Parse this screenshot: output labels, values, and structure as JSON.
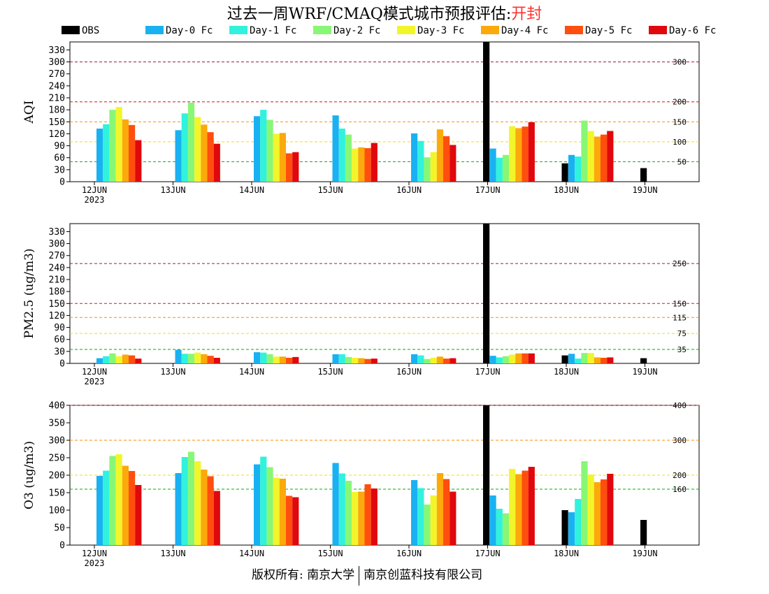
{
  "title": {
    "main": "过去一周WRF/CMAQ模式城市预报评估:",
    "city": "开封"
  },
  "legend": [
    {
      "name": "OBS",
      "color": "#000000"
    },
    {
      "name": "Day-0 Fc",
      "color": "#1ab1f2"
    },
    {
      "name": "Day-1 Fc",
      "color": "#30f2dd"
    },
    {
      "name": "Day-2 Fc",
      "color": "#88f776"
    },
    {
      "name": "Day-3 Fc",
      "color": "#f2f52a"
    },
    {
      "name": "Day-4 Fc",
      "color": "#fba90b"
    },
    {
      "name": "Day-5 Fc",
      "color": "#ff4e0e"
    },
    {
      "name": "Day-6 Fc",
      "color": "#e0080d"
    }
  ],
  "chart_data": [
    {
      "type": "bar",
      "ylabel": "AQI",
      "ylim": [
        0,
        350
      ],
      "yticks": [
        0,
        30,
        60,
        90,
        120,
        150,
        180,
        210,
        240,
        270,
        300,
        330
      ],
      "categories": [
        "12JUN",
        "13JUN",
        "14JUN",
        "15JUN",
        "16JUN",
        "17JUN",
        "18JUN",
        "19JUN"
      ],
      "year_label": "2023",
      "reference_lines": [
        {
          "value": 300,
          "label": "300",
          "color": "#9b1a3c"
        },
        {
          "value": 200,
          "label": "200",
          "color": "#d01818"
        },
        {
          "value": 150,
          "label": "150",
          "color": "#ff8c00"
        },
        {
          "value": 100,
          "label": "100",
          "color": "#f0e000"
        },
        {
          "value": 50,
          "label": "50",
          "color": "#00b000"
        }
      ],
      "series": [
        {
          "name": "OBS",
          "values": [
            null,
            null,
            null,
            null,
            null,
            350,
            46,
            34
          ]
        },
        {
          "name": "Day-0 Fc",
          "values": [
            133,
            129,
            164,
            166,
            121,
            83,
            67,
            null
          ]
        },
        {
          "name": "Day-1 Fc",
          "values": [
            144,
            171,
            180,
            133,
            102,
            60,
            63,
            null
          ]
        },
        {
          "name": "Day-2 Fc",
          "values": [
            180,
            198,
            155,
            118,
            61,
            67,
            153,
            null
          ]
        },
        {
          "name": "Day-3 Fc",
          "values": [
            187,
            162,
            120,
            83,
            74,
            139,
            127,
            null
          ]
        },
        {
          "name": "Day-4 Fc",
          "values": [
            156,
            143,
            122,
            86,
            131,
            134,
            113,
            null
          ]
        },
        {
          "name": "Day-5 Fc",
          "values": [
            142,
            124,
            71,
            84,
            114,
            138,
            118,
            null
          ]
        },
        {
          "name": "Day-6 Fc",
          "values": [
            104,
            95,
            74,
            97,
            92,
            149,
            127,
            null
          ]
        }
      ]
    },
    {
      "type": "bar",
      "ylabel": "PM2.5 (ug/m3)",
      "ylim": [
        0,
        350
      ],
      "yticks": [
        0,
        30,
        60,
        90,
        120,
        150,
        180,
        210,
        240,
        270,
        300,
        330
      ],
      "categories": [
        "12JUN",
        "13JUN",
        "14JUN",
        "15JUN",
        "16JUN",
        "17JUN",
        "18JUN",
        "19JUN"
      ],
      "year_label": "2023",
      "reference_lines": [
        {
          "value": 250,
          "label": "250",
          "color": "#9b1a3c"
        },
        {
          "value": 150,
          "label": "150",
          "color": "#d01818"
        },
        {
          "value": 115,
          "label": "115",
          "color": "#ff8c00"
        },
        {
          "value": 75,
          "label": "75",
          "color": "#f0e000"
        },
        {
          "value": 35,
          "label": "35",
          "color": "#00b000"
        }
      ],
      "series": [
        {
          "name": "OBS",
          "values": [
            null,
            null,
            null,
            null,
            null,
            350,
            20,
            13
          ]
        },
        {
          "name": "Day-0 Fc",
          "values": [
            13,
            34,
            28,
            23,
            23,
            19,
            24,
            null
          ]
        },
        {
          "name": "Day-1 Fc",
          "values": [
            18,
            24,
            27,
            23,
            20,
            15,
            12,
            null
          ]
        },
        {
          "name": "Day-2 Fc",
          "values": [
            25,
            24,
            23,
            16,
            11,
            18,
            26,
            null
          ]
        },
        {
          "name": "Day-3 Fc",
          "values": [
            18,
            27,
            17,
            14,
            14,
            22,
            26,
            null
          ]
        },
        {
          "name": "Day-4 Fc",
          "values": [
            22,
            23,
            17,
            13,
            17,
            25,
            15,
            null
          ]
        },
        {
          "name": "Day-5 Fc",
          "values": [
            20,
            19,
            14,
            11,
            12,
            25,
            14,
            null
          ]
        },
        {
          "name": "Day-6 Fc",
          "values": [
            12,
            14,
            16,
            12,
            13,
            25,
            15,
            null
          ]
        }
      ]
    },
    {
      "type": "bar",
      "ylabel": "O3 (ug/m3)",
      "ylim": [
        0,
        400
      ],
      "yticks": [
        0,
        50,
        100,
        150,
        200,
        250,
        300,
        350,
        400
      ],
      "categories": [
        "12JUN",
        "13JUN",
        "14JUN",
        "15JUN",
        "16JUN",
        "17JUN",
        "18JUN",
        "19JUN"
      ],
      "year_label": "2023",
      "reference_lines": [
        {
          "value": 400,
          "label": "400",
          "color": "#d01818"
        },
        {
          "value": 300,
          "label": "300",
          "color": "#ff8c00"
        },
        {
          "value": 200,
          "label": "200",
          "color": "#f0e000"
        },
        {
          "value": 160,
          "label": "160",
          "color": "#00b000"
        }
      ],
      "series": [
        {
          "name": "OBS",
          "values": [
            null,
            null,
            null,
            null,
            null,
            400,
            100,
            72
          ]
        },
        {
          "name": "Day-0 Fc",
          "values": [
            198,
            206,
            231,
            235,
            186,
            142,
            94,
            null
          ]
        },
        {
          "name": "Day-1 Fc",
          "values": [
            213,
            252,
            253,
            205,
            163,
            104,
            132,
            null
          ]
        },
        {
          "name": "Day-2 Fc",
          "values": [
            255,
            267,
            223,
            184,
            116,
            91,
            240,
            null
          ]
        },
        {
          "name": "Day-3 Fc",
          "values": [
            260,
            240,
            193,
            152,
            142,
            218,
            202,
            null
          ]
        },
        {
          "name": "Day-4 Fc",
          "values": [
            227,
            216,
            190,
            153,
            206,
            203,
            180,
            null
          ]
        },
        {
          "name": "Day-5 Fc",
          "values": [
            212,
            197,
            141,
            174,
            189,
            213,
            188,
            null
          ]
        },
        {
          "name": "Day-6 Fc",
          "values": [
            172,
            155,
            137,
            162,
            153,
            224,
            204,
            null
          ]
        }
      ]
    }
  ],
  "footer": {
    "left": "版权所有: 南京大学",
    "right": "南京创蓝科技有限公司"
  }
}
